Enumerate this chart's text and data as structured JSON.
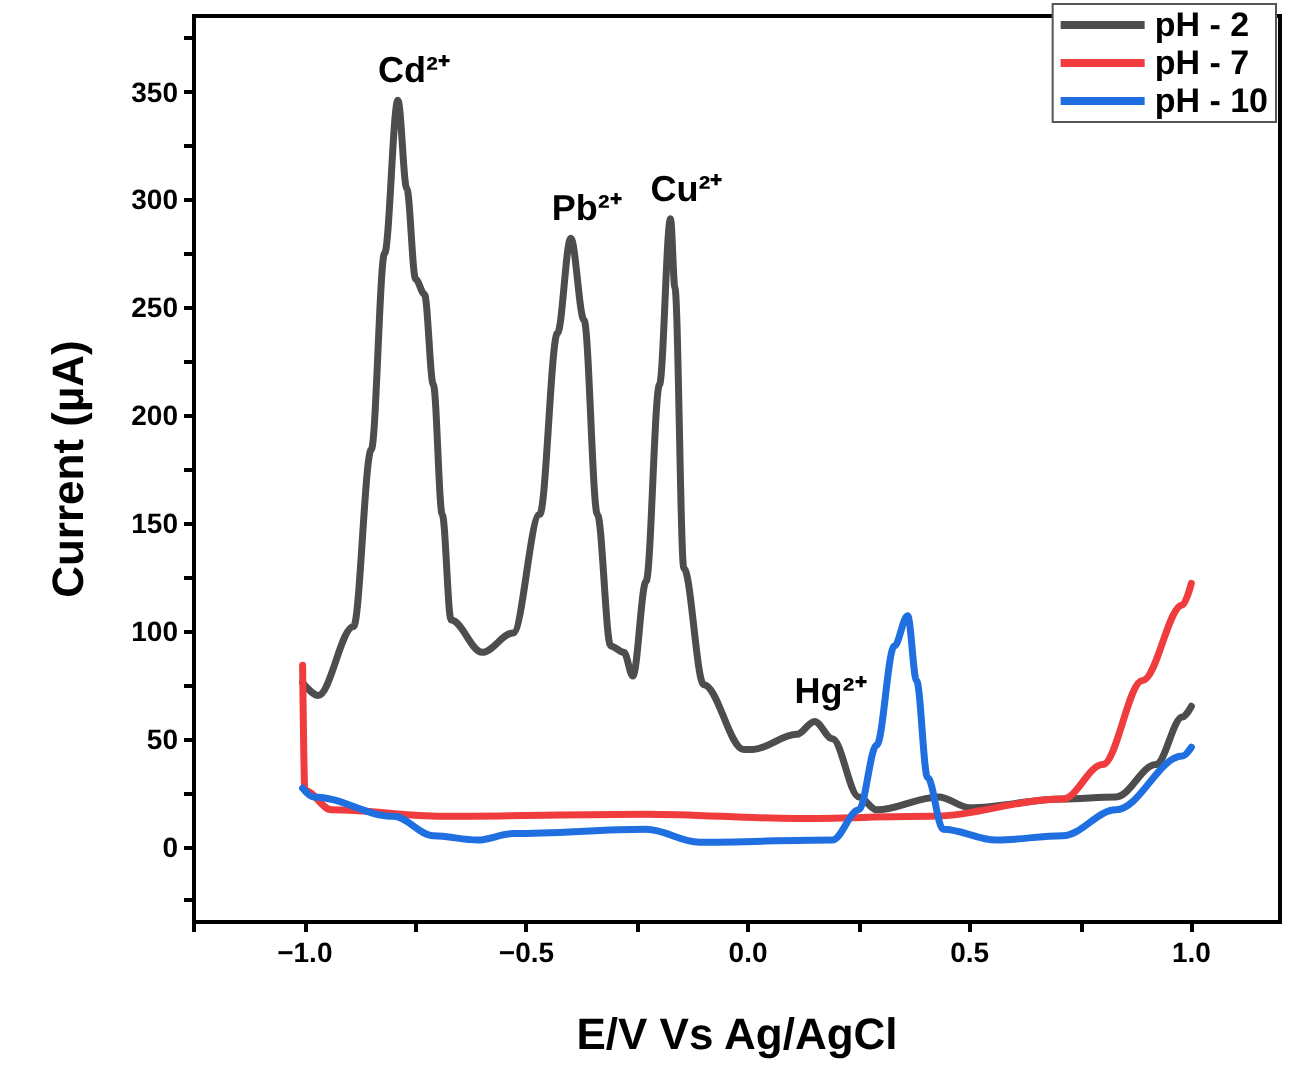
{
  "chart_data": {
    "type": "line",
    "xlabel": "E/V Vs Ag/AgCl",
    "ylabel": "Current (µA)",
    "xlim": [
      -1.25,
      1.2
    ],
    "xticks": [
      {
        "value": -1.25,
        "label": null
      },
      {
        "value": -1.0,
        "label": "−1.0"
      },
      {
        "value": -0.75,
        "label": null
      },
      {
        "value": -0.5,
        "label": "−0.5"
      },
      {
        "value": -0.25,
        "label": null
      },
      {
        "value": 0,
        "label": "0.0"
      },
      {
        "value": 0.25,
        "label": null
      },
      {
        "value": 0.5,
        "label": "0.5"
      },
      {
        "value": 0.75,
        "label": null
      },
      {
        "value": 1.0,
        "label": "1.0"
      }
    ],
    "ylim": [
      -35,
      385
    ],
    "yticks": [
      {
        "value": -25,
        "label": null
      },
      0,
      {
        "value": 25,
        "label": null
      },
      50,
      {
        "value": 75,
        "label": null
      },
      100,
      {
        "value": 125,
        "label": null
      },
      150,
      {
        "value": 175,
        "label": null
      },
      200,
      {
        "value": 225,
        "label": null
      },
      250,
      {
        "value": 275,
        "label": null
      },
      300,
      {
        "value": 325,
        "label": null
      },
      350,
      {
        "value": 375,
        "label": null
      }
    ],
    "grid": false,
    "legend": "top right",
    "line_style": "solid",
    "series": [
      {
        "name": "pH - 2",
        "color": "#4d4d4d",
        "x": [
          -1.005,
          -0.97,
          -0.89,
          -0.85,
          -0.82,
          -0.79,
          -0.77,
          -0.75,
          -0.73,
          -0.71,
          -0.69,
          -0.67,
          -0.6,
          -0.53,
          -0.47,
          -0.43,
          -0.4,
          -0.37,
          -0.34,
          -0.31,
          -0.28,
          -0.26,
          -0.23,
          -0.2,
          -0.175,
          -0.165,
          -0.145,
          -0.1,
          -0.01,
          0.01,
          0.11,
          0.15,
          0.19,
          0.25,
          0.29,
          0.43,
          0.5,
          0.71,
          0.83,
          0.92,
          0.98,
          1.0
        ],
        "values": [
          76,
          70,
          102,
          184,
          275,
          346,
          305,
          263,
          256,
          214,
          154,
          105,
          90,
          99,
          154,
          238,
          282,
          244,
          154,
          93,
          90,
          79,
          123,
          214,
          291,
          259,
          129,
          75,
          45,
          45,
          52,
          58,
          50,
          23,
          17,
          23,
          18,
          22,
          23,
          38,
          60,
          65
        ]
      },
      {
        "name": "pH - 7",
        "color": "#f03c3c",
        "x": [
          -1.005,
          -1.0,
          -0.94,
          -0.69,
          -0.23,
          0.11,
          0.41,
          0.71,
          0.8,
          0.89,
          0.98,
          1.0
        ],
        "values": [
          84,
          26,
          17,
          14,
          15,
          13,
          14,
          22,
          38,
          77,
          112,
          122
        ]
      },
      {
        "name": "pH - 10",
        "color": "#1f6fe0",
        "x": [
          -1.005,
          -0.98,
          -0.8,
          -0.71,
          -0.61,
          -0.53,
          -0.23,
          -0.11,
          0.19,
          0.25,
          0.29,
          0.33,
          0.36,
          0.38,
          0.405,
          0.44,
          0.56,
          0.71,
          0.83,
          0.98,
          1.0
        ],
        "values": [
          27,
          23,
          14,
          5,
          3,
          6,
          8,
          2,
          3,
          17,
          47,
          93,
          107,
          77,
          32,
          8,
          3,
          5,
          17,
          42,
          46
        ]
      }
    ],
    "annotations": [
      {
        "text": "Cd²⁺",
        "x": -0.79,
        "y": 346
      },
      {
        "text": "Pb²⁺",
        "x": -0.4,
        "y": 282
      },
      {
        "text": "Cu²⁺",
        "x": -0.175,
        "y": 291
      },
      {
        "text": "Hg²⁺",
        "x": 0.15,
        "y": 58
      }
    ]
  }
}
